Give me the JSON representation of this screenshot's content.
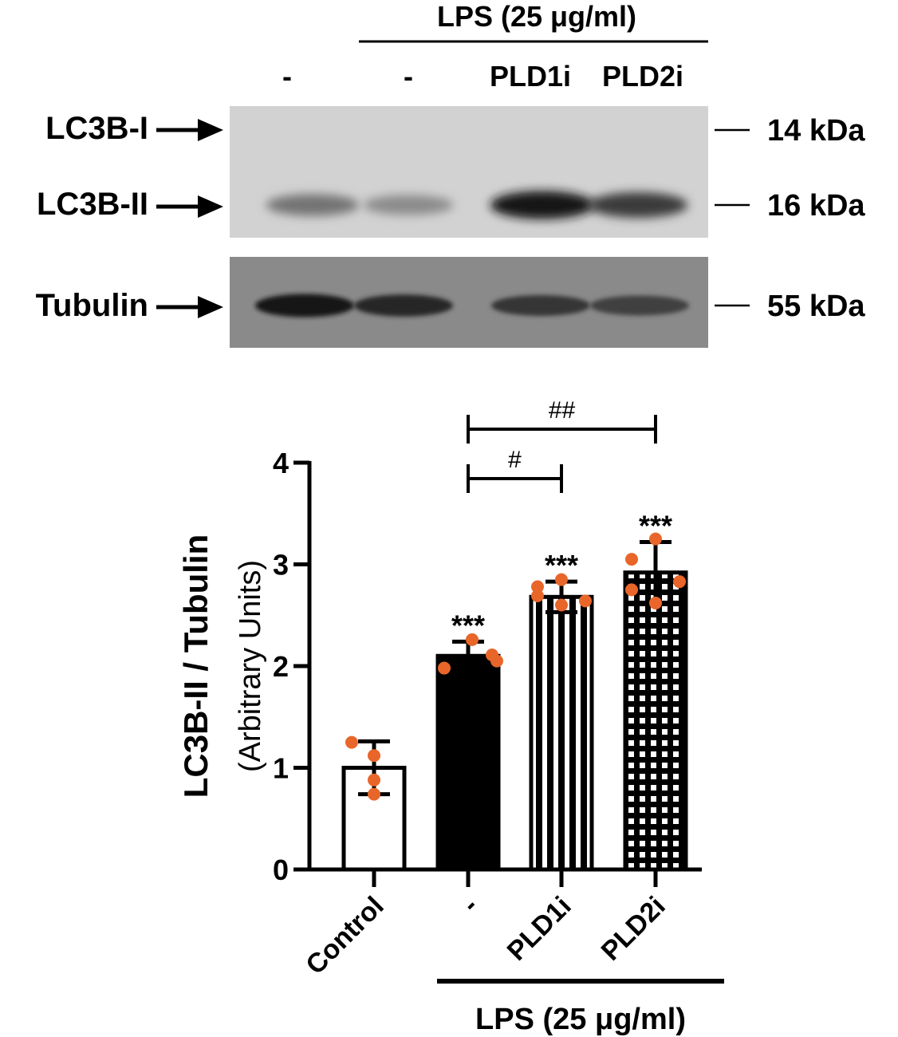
{
  "western_blot": {
    "treatment_label": "LPS (25 μg/ml)",
    "lane_labels": [
      "-",
      "-",
      "PLD1i",
      "PLD2i"
    ],
    "bands": [
      {
        "label": "LC3B-I",
        "size": "14 kDa"
      },
      {
        "label": "LC3B-II",
        "size": "16 kDa"
      },
      {
        "label": "Tubulin",
        "size": "55 kDa"
      }
    ],
    "lc3b_ii_intensity": [
      0.45,
      0.32,
      0.95,
      0.75
    ],
    "tubulin_intensity": [
      0.9,
      0.75,
      0.6,
      0.5
    ]
  },
  "chart_data": {
    "type": "bar",
    "categories": [
      "Control",
      "-",
      "PLD1i",
      "PLD2i"
    ],
    "values": [
      1.0,
      2.1,
      2.68,
      2.92
    ],
    "errors": [
      0.26,
      0.14,
      0.15,
      0.3
    ],
    "points": [
      [
        1.25,
        1.12,
        0.88,
        0.74
      ],
      [
        2.26,
        2.11,
        1.98,
        2.05
      ],
      [
        2.85,
        2.78,
        2.64,
        2.69,
        2.6
      ],
      [
        3.25,
        3.05,
        2.83,
        2.75,
        2.62
      ]
    ],
    "fills": [
      "white",
      "solid",
      "vertical-stripes",
      "checker"
    ],
    "ylabel": "LC3B-II / Tubulin",
    "ylabel_sub": "(Arbitrary Units)",
    "ylim": [
      0,
      4
    ],
    "yticks": [
      0,
      1,
      2,
      3,
      4
    ],
    "significance": [
      "",
      "***",
      "***",
      "***"
    ],
    "comparisons": [
      {
        "from": 1,
        "to": 2,
        "label": "#"
      },
      {
        "from": 1,
        "to": 3,
        "label": "##"
      }
    ],
    "group_label": "LPS (25 μg/ml)",
    "point_color": "#e8662a",
    "bar_color": "#000000"
  }
}
